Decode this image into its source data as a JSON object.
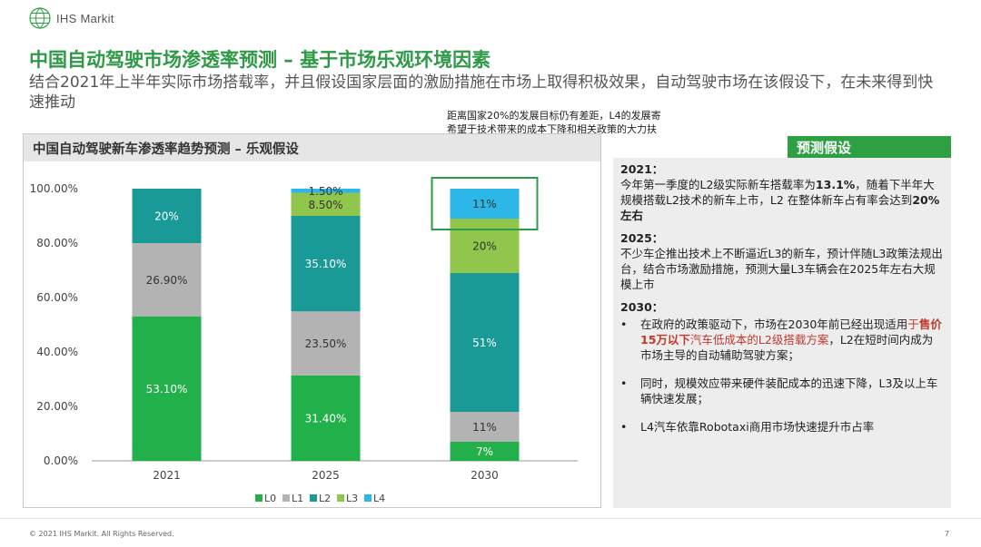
{
  "brand": {
    "logo_text": "IHS Markit"
  },
  "title": "中国自动驾驶市场渗透率预测 – 基于市场乐观环境因素",
  "subtitle": "结合2021年上半年实际市场搭载率，并且假设国家层面的激励措施在市场上取得积极效果，自动驾驶市场在该假设下，在未来得到快速推动",
  "callout_note": "距离国家20%的发展目标仍有差距，L4的发展寄希望于技术带来的成本下降和相关政策的大力扶持",
  "chart_data": {
    "type": "bar",
    "stacked": true,
    "title": "中国自动驾驶新车渗透率趋势预测 – 乐观假设",
    "categories": [
      "2021",
      "2025",
      "2030"
    ],
    "series": [
      {
        "name": "L0",
        "color": "#22b04b",
        "values": [
          53.1,
          31.4,
          7
        ],
        "labels": [
          "53.10%",
          "31.40%",
          "7%"
        ]
      },
      {
        "name": "L1",
        "color": "#b3b3b3",
        "values": [
          26.9,
          23.5,
          11
        ],
        "labels": [
          "26.90%",
          "23.50%",
          "11%"
        ]
      },
      {
        "name": "L2",
        "color": "#1a9a96",
        "values": [
          20,
          35.1,
          51
        ],
        "labels": [
          "20%",
          "35.10%",
          "51%"
        ]
      },
      {
        "name": "L3",
        "color": "#8fc64b",
        "values": [
          0,
          8.5,
          20
        ],
        "labels": [
          "",
          "8.50%",
          "20%"
        ]
      },
      {
        "name": "L4",
        "color": "#2bb7e8",
        "values": [
          0,
          1.5,
          11
        ],
        "labels": [
          "",
          "1.50%",
          "11%"
        ]
      }
    ],
    "yticks": [
      "0.00%",
      "20.00%",
      "40.00%",
      "60.00%",
      "80.00%",
      "100.00%"
    ],
    "ylim": [
      0,
      100
    ],
    "legend": "bottom",
    "highlight": "2030 L4"
  },
  "assumptions": {
    "header": "预测假设",
    "y2021": {
      "head": "2021：",
      "t1": "今年第一季度的L2级实际新车搭载率为",
      "v1": "13.1%",
      "t2": "，随着下半年大规模搭载L2技术的新车上市，L2 在整体新车占有率会达到",
      "v2": "20% 左右"
    },
    "y2025": {
      "head": "2025：",
      "text": "不少车企推出技术上不断逼近L3的新车，预计伴随L3政策法规出台，结合市场激励措施，预测大量L3车辆会在2025年左右大规模上市"
    },
    "y2030": {
      "head": "2030：",
      "b1_pre": "在政府的政策驱动下，市场在2030年前已经出现适用",
      "b1_hl1": "于",
      "b1_hl2": "售价15万以下",
      "b1_mid": "汽车",
      "b1_hl3": "低成本的L2级搭载方案",
      "b1_post": "，L2在短时间内成为市场主导的自动辅助驾驶方案；",
      "b2": "同时，规模效应带来硬件装配成本的迅速下降，L3及以上车辆快速发展；",
      "b3": "L4汽车依靠Robotaxi商用市场快速提升市占率"
    }
  },
  "footer": "© 2021 IHS Markit. All Rights Reserved.",
  "page_number": "7"
}
